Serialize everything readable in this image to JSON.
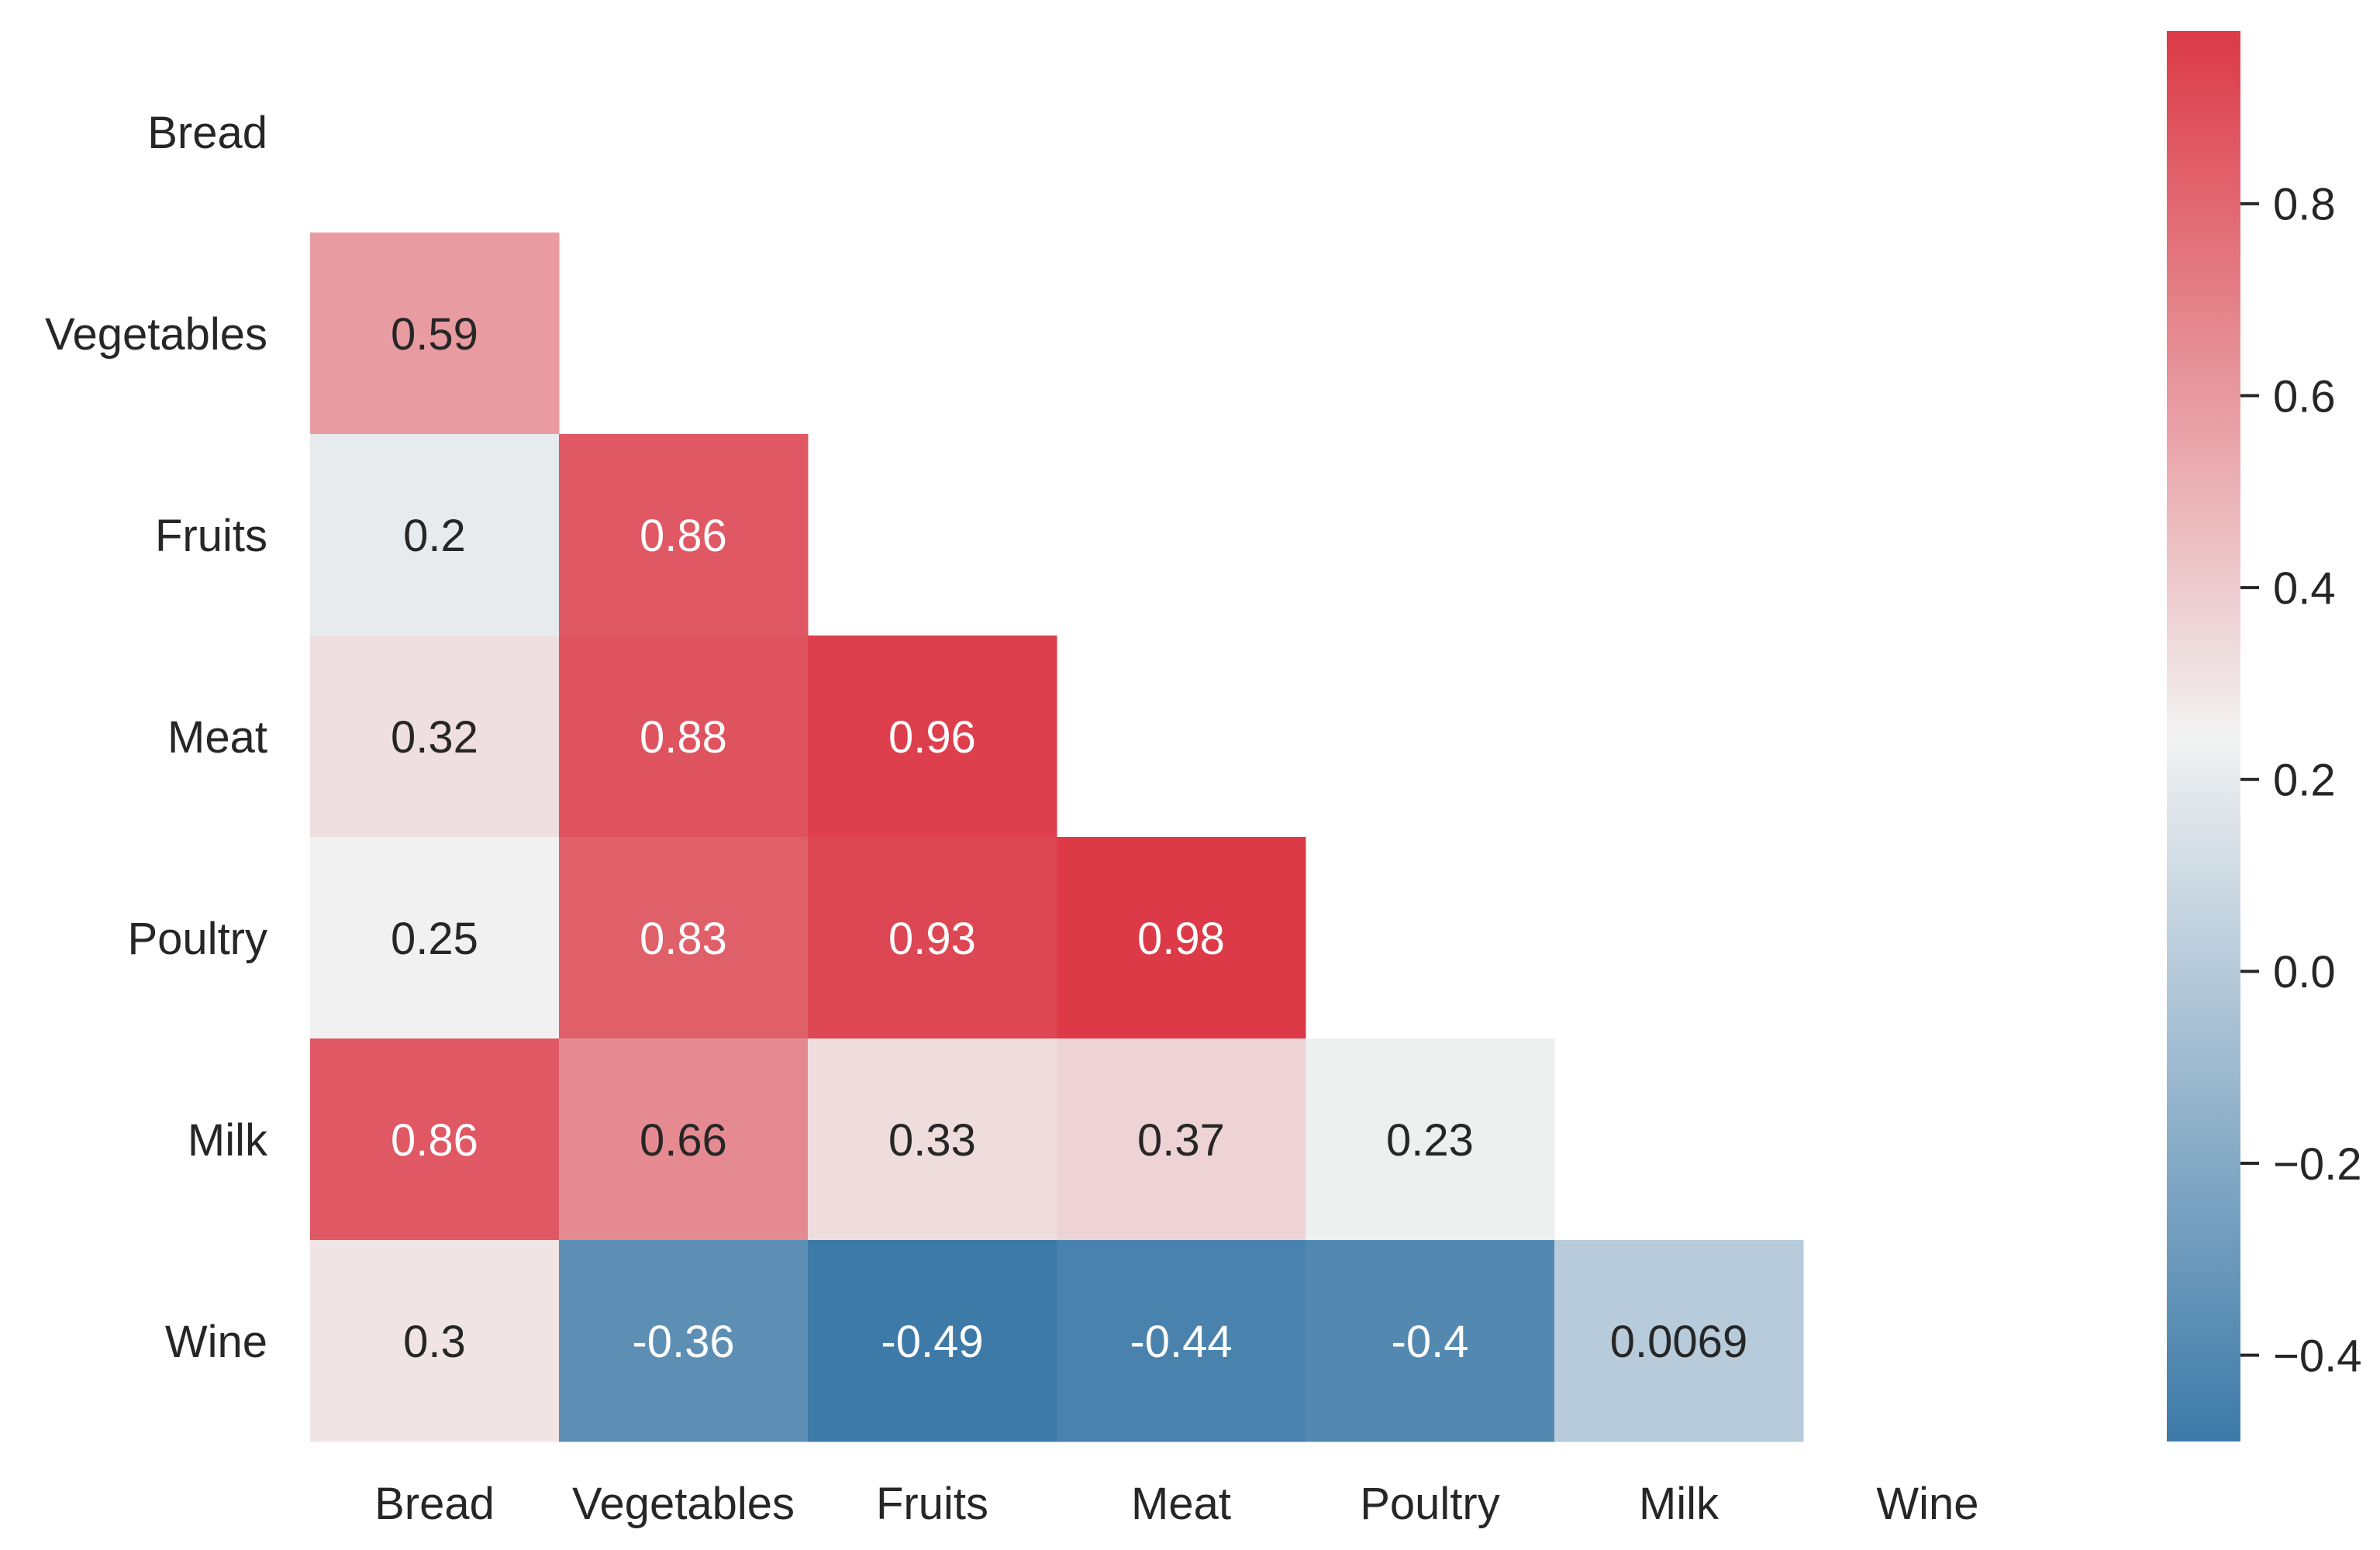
{
  "chart_data": {
    "type": "heatmap",
    "title": "",
    "xlabel": "",
    "ylabel": "",
    "categories": [
      "Bread",
      "Vegetables",
      "Fruits",
      "Meat",
      "Poultry",
      "Milk",
      "Wine"
    ],
    "mask": "upper-triangle-including-diagonal",
    "matrix": [
      [
        null,
        null,
        null,
        null,
        null,
        null,
        null
      ],
      [
        0.59,
        null,
        null,
        null,
        null,
        null,
        null
      ],
      [
        0.2,
        0.86,
        null,
        null,
        null,
        null,
        null
      ],
      [
        0.32,
        0.88,
        0.96,
        null,
        null,
        null,
        null
      ],
      [
        0.25,
        0.83,
        0.93,
        0.98,
        null,
        null,
        null
      ],
      [
        0.86,
        0.66,
        0.33,
        0.37,
        0.23,
        null,
        null
      ],
      [
        0.3,
        -0.36,
        -0.49,
        -0.44,
        -0.4,
        0.0069,
        null
      ]
    ],
    "cell_labels": [
      [
        "",
        "",
        "",
        "",
        "",
        "",
        ""
      ],
      [
        "0.59",
        "",
        "",
        "",
        "",
        "",
        ""
      ],
      [
        "0.2",
        "0.86",
        "",
        "",
        "",
        "",
        ""
      ],
      [
        "0.32",
        "0.88",
        "0.96",
        "",
        "",
        "",
        ""
      ],
      [
        "0.25",
        "0.83",
        "0.93",
        "0.98",
        "",
        "",
        ""
      ],
      [
        "0.86",
        "0.66",
        "0.33",
        "0.37",
        "0.23",
        "",
        ""
      ],
      [
        "0.3",
        "-0.36",
        "-0.49",
        "-0.44",
        "-0.4",
        "0.0069",
        ""
      ]
    ],
    "colorbar": {
      "vmin": -0.49,
      "vmax": 0.98,
      "center": 0.245,
      "ticks": [
        0.8,
        0.6,
        0.4,
        0.2,
        0.0,
        -0.2,
        -0.4
      ],
      "tick_labels": [
        "0.8",
        "0.6",
        "0.4",
        "0.2",
        "0.0",
        "−0.2",
        "−0.4"
      ],
      "low_color": "#3d7aa8",
      "mid_color": "#f2f2f2",
      "high_color": "#dc3a47"
    },
    "grid": false
  }
}
